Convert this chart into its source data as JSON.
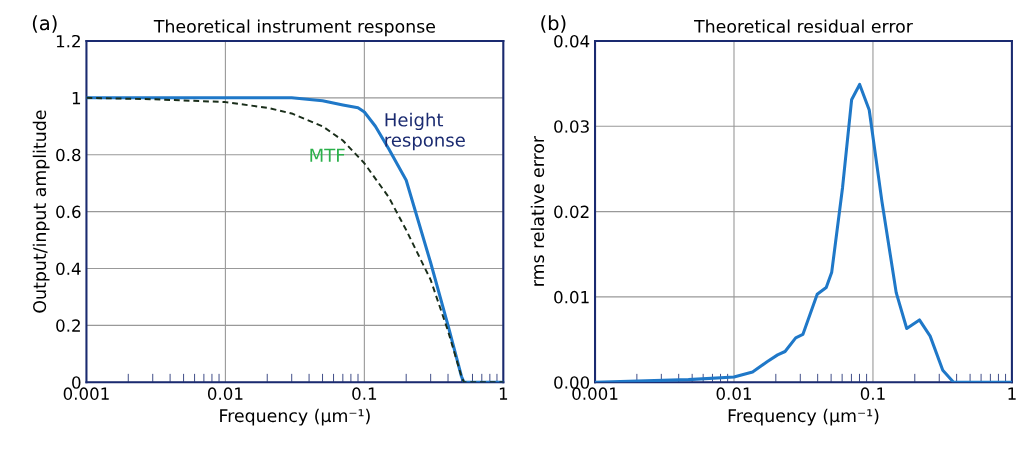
{
  "chart_data": [
    {
      "type": "line",
      "title": "Theoretical instrument response",
      "xlabel": "Frequency (μm⁻¹)",
      "ylabel": "Output/input amplitude",
      "log": "x",
      "grid": true,
      "legend": false,
      "xlim": [
        0.001,
        1
      ],
      "xticks": [
        0.001,
        0.01,
        0.1,
        1
      ],
      "ylim": [
        0,
        1.2
      ],
      "yticks": [
        0,
        0.2,
        0.4,
        0.6,
        0.8,
        1,
        1.2
      ],
      "annotations": [
        "(a)"
      ],
      "series": [
        {
          "name": "Height\nresponse",
          "color": "#1f78c8",
          "line_style": "solid",
          "x": [
            0.001,
            0.01,
            0.03,
            0.05,
            0.07,
            0.09,
            0.1,
            0.12,
            0.15,
            0.2,
            0.3,
            0.4,
            0.5,
            0.52,
            1
          ],
          "values": [
            1,
            1,
            1,
            0.99,
            0.975,
            0.965,
            0.95,
            0.9,
            0.82,
            0.71,
            0.42,
            0.2,
            0.02,
            0,
            0
          ]
        },
        {
          "name": "MTF",
          "color": "#1a2e1a",
          "line_style": "dashed",
          "x": [
            0.001,
            0.003,
            0.01,
            0.02,
            0.03,
            0.05,
            0.07,
            0.1,
            0.15,
            0.2,
            0.3,
            0.4,
            0.5,
            0.52,
            1
          ],
          "values": [
            1,
            0.995,
            0.985,
            0.965,
            0.945,
            0.9,
            0.85,
            0.77,
            0.65,
            0.535,
            0.36,
            0.18,
            0.02,
            0,
            0
          ]
        }
      ]
    },
    {
      "type": "line",
      "title": "Theoretical residual error",
      "xlabel": "Frequency (μm⁻¹)",
      "ylabel": "rms relative error",
      "log": "x",
      "grid": true,
      "legend": false,
      "xlim": [
        0.001,
        1
      ],
      "xticks": [
        0.001,
        0.01,
        0.1,
        1
      ],
      "ylim": [
        0,
        0.04
      ],
      "yticks": [
        {
          "value": 0,
          "label": "0.00"
        },
        {
          "value": 0.01,
          "label": "0.01"
        },
        {
          "value": 0.02,
          "label": "0.02"
        },
        {
          "value": 0.03,
          "label": "0.03"
        },
        {
          "value": 0.04,
          "label": "0.04"
        }
      ],
      "annotations": [
        "(b)"
      ],
      "series": [
        {
          "color": "#1f78c8",
          "line_style": "solid",
          "x": [
            0.001,
            0.0047,
            0.01,
            0.0136,
            0.0173,
            0.0206,
            0.0233,
            0.0278,
            0.0313,
            0.0397,
            0.0461,
            0.0505,
            0.0604,
            0.0702,
            0.0802,
            0.094,
            0.116,
            0.147,
            0.175,
            0.216,
            0.258,
            0.318,
            0.38,
            1
          ],
          "values": [
            0,
            0.0003,
            0.0006,
            0.0012,
            0.0024,
            0.0032,
            0.0036,
            0.0052,
            0.0056,
            0.0103,
            0.0111,
            0.0129,
            0.0228,
            0.0331,
            0.0349,
            0.0319,
            0.0212,
            0.0105,
            0.0063,
            0.0073,
            0.0054,
            0.0014,
            0,
            0
          ]
        }
      ]
    }
  ]
}
